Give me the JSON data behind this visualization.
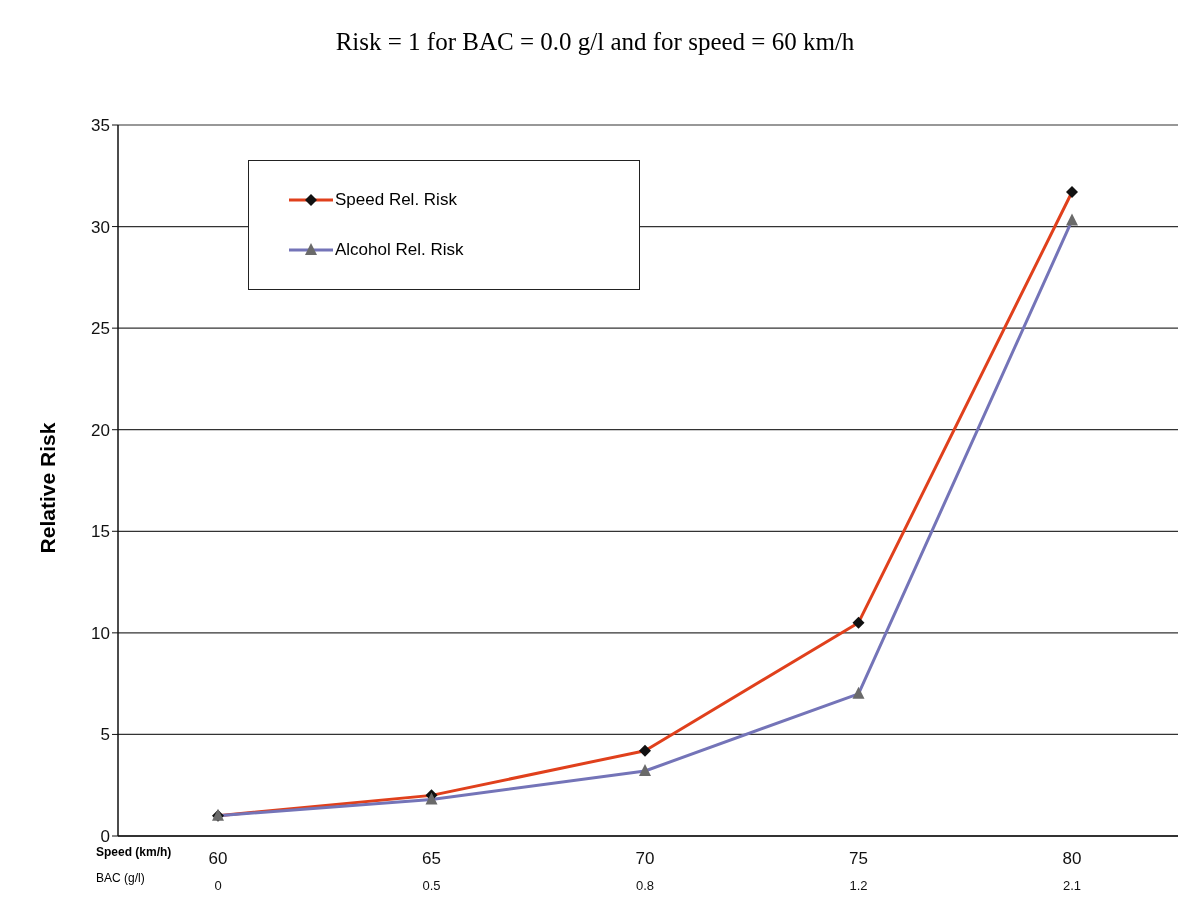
{
  "chart_data": {
    "type": "line",
    "title": "Risk = 1 for BAC = 0.0 g/l and for speed = 60 km/h",
    "ylabel": "Relative Risk",
    "xlabel": "Speed (km/h)",
    "categories": [
      "60",
      "65",
      "70",
      "75",
      "80"
    ],
    "series": [
      {
        "name": "Speed Rel. Risk",
        "color": "#e0401c",
        "marker": "diamond",
        "values": [
          1.0,
          2.0,
          4.2,
          10.5,
          31.7
        ]
      },
      {
        "name": "Alcohol Rel. Risk",
        "color": "#7474b8",
        "marker": "triangle",
        "values": [
          1.0,
          1.8,
          3.2,
          7.0,
          30.3
        ]
      }
    ],
    "annotations": [
      "BAC (g/l)",
      "0",
      "0.5",
      "0.8",
      "1.2",
      "2.1"
    ],
    "ylim": [
      0,
      35
    ],
    "yticks": [
      0,
      5,
      10,
      15,
      20,
      25,
      30,
      35
    ],
    "grid": "y",
    "legend": "top left",
    "line_style": "solid"
  }
}
